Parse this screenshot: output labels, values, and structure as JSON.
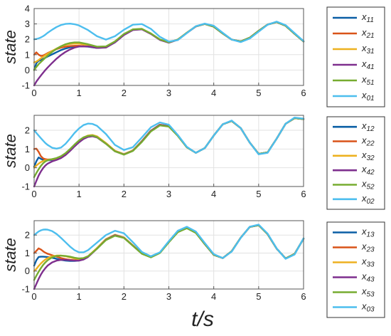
{
  "figure": {
    "xlabel": "t/s"
  },
  "chart_data": [
    {
      "type": "line",
      "xlabel": "",
      "ylabel": "state",
      "xlim": [
        0,
        6
      ],
      "ylim": [
        -1,
        4
      ],
      "xticks": [
        0,
        1,
        2,
        3,
        4,
        5,
        6
      ],
      "yticks": [
        -1,
        0,
        1,
        2,
        3,
        4
      ],
      "grid": true,
      "legend_position": "right",
      "x": [
        0,
        0.05,
        0.1,
        0.15,
        0.2,
        0.25,
        0.3,
        0.4,
        0.5,
        0.6,
        0.7,
        0.8,
        0.9,
        1,
        1.2,
        1.4,
        1.6,
        1.8,
        2,
        2.2,
        2.4,
        2.6,
        2.8,
        3,
        3.2,
        3.4,
        3.6,
        3.8,
        4,
        4.2,
        4.4,
        4.6,
        4.8,
        5,
        5.2,
        5.4,
        5.6,
        5.8,
        6
      ],
      "series": [
        {
          "name": "11",
          "color": "#0b5fa5",
          "values": [
            0,
            0.45,
            0.6,
            0.65,
            0.72,
            0.8,
            0.88,
            1.02,
            1.16,
            1.3,
            1.4,
            1.48,
            1.53,
            1.55,
            1.52,
            1.44,
            1.48,
            1.8,
            2.3,
            2.62,
            2.66,
            2.36,
            1.98,
            1.8,
            1.98,
            2.42,
            2.84,
            3.0,
            2.82,
            2.38,
            1.98,
            1.86,
            2.1,
            2.55,
            2.96,
            3.12,
            2.88,
            2.36,
            1.86
          ]
        },
        {
          "name": "21",
          "color": "#d95319",
          "values": [
            1.0,
            1.15,
            1.0,
            0.92,
            0.94,
            1.02,
            1.1,
            1.24,
            1.36,
            1.46,
            1.52,
            1.56,
            1.58,
            1.58,
            1.54,
            1.46,
            1.5,
            1.82,
            2.3,
            2.62,
            2.66,
            2.36,
            1.98,
            1.8,
            1.98,
            2.42,
            2.84,
            3.0,
            2.82,
            2.38,
            1.98,
            1.86,
            2.1,
            2.55,
            2.96,
            3.12,
            2.88,
            2.36,
            1.86
          ]
        },
        {
          "name": "31",
          "color": "#edb120",
          "values": [
            0.5,
            0.55,
            0.65,
            0.76,
            0.86,
            0.96,
            1.06,
            1.24,
            1.4,
            1.54,
            1.64,
            1.7,
            1.73,
            1.72,
            1.62,
            1.48,
            1.5,
            1.82,
            2.32,
            2.63,
            2.67,
            2.37,
            1.98,
            1.8,
            1.98,
            2.42,
            2.84,
            3.0,
            2.82,
            2.38,
            1.98,
            1.86,
            2.1,
            2.55,
            2.96,
            3.12,
            2.88,
            2.36,
            1.86
          ]
        },
        {
          "name": "41",
          "color": "#7e2f8e",
          "values": [
            -1.0,
            -0.75,
            -0.55,
            -0.36,
            -0.18,
            0.0,
            0.16,
            0.46,
            0.74,
            0.98,
            1.18,
            1.34,
            1.46,
            1.53,
            1.54,
            1.44,
            1.46,
            1.8,
            2.28,
            2.6,
            2.65,
            2.35,
            1.96,
            1.78,
            1.97,
            2.41,
            2.83,
            3.0,
            2.82,
            2.38,
            1.98,
            1.86,
            2.1,
            2.55,
            2.96,
            3.12,
            2.88,
            2.36,
            1.86
          ]
        },
        {
          "name": "51",
          "color": "#77ac30",
          "values": [
            0,
            0.2,
            0.38,
            0.52,
            0.66,
            0.8,
            0.94,
            1.18,
            1.38,
            1.55,
            1.68,
            1.76,
            1.8,
            1.8,
            1.68,
            1.52,
            1.54,
            1.86,
            2.35,
            2.65,
            2.68,
            2.38,
            1.99,
            1.8,
            1.98,
            2.42,
            2.84,
            3.0,
            2.82,
            2.38,
            1.98,
            1.86,
            2.1,
            2.55,
            2.96,
            3.12,
            2.88,
            2.36,
            1.86
          ]
        },
        {
          "name": "01",
          "color": "#4dbeee",
          "values": [
            2.0,
            2.02,
            2.06,
            2.12,
            2.2,
            2.3,
            2.42,
            2.62,
            2.8,
            2.93,
            3.0,
            3.02,
            2.98,
            2.9,
            2.6,
            2.2,
            1.98,
            2.2,
            2.62,
            2.95,
            2.99,
            2.68,
            2.16,
            1.85,
            1.95,
            2.4,
            2.85,
            3.02,
            2.88,
            2.42,
            1.98,
            1.82,
            2.05,
            2.5,
            2.95,
            3.15,
            2.92,
            2.4,
            1.88
          ]
        }
      ]
    },
    {
      "type": "line",
      "xlabel": "",
      "ylabel": "state",
      "xlim": [
        0,
        6
      ],
      "ylim": [
        -1,
        2.8
      ],
      "xticks": [
        0,
        1,
        2,
        3,
        4,
        5,
        6
      ],
      "yticks": [
        -1,
        0,
        1,
        2
      ],
      "grid": true,
      "legend_position": "right",
      "x": [
        0,
        0.05,
        0.1,
        0.15,
        0.2,
        0.25,
        0.3,
        0.4,
        0.5,
        0.6,
        0.7,
        0.8,
        0.9,
        1,
        1.1,
        1.2,
        1.3,
        1.4,
        1.6,
        1.8,
        2,
        2.2,
        2.4,
        2.6,
        2.8,
        3,
        3.2,
        3.4,
        3.6,
        3.8,
        4,
        4.2,
        4.4,
        4.6,
        4.8,
        5,
        5.2,
        5.4,
        5.6,
        5.8,
        6
      ],
      "series": [
        {
          "name": "12",
          "color": "#0b5fa5",
          "values": [
            0.05,
            0.35,
            0.55,
            0.48,
            0.42,
            0.4,
            0.4,
            0.42,
            0.46,
            0.55,
            0.7,
            0.92,
            1.16,
            1.38,
            1.56,
            1.67,
            1.7,
            1.64,
            1.3,
            0.9,
            0.72,
            0.92,
            1.42,
            1.98,
            2.3,
            2.22,
            1.72,
            1.1,
            0.8,
            1.05,
            1.72,
            2.32,
            2.5,
            2.12,
            1.35,
            0.74,
            0.82,
            1.55,
            2.35,
            2.65,
            2.6
          ]
        },
        {
          "name": "22",
          "color": "#d95319",
          "values": [
            1.0,
            1.02,
            0.85,
            0.62,
            0.5,
            0.46,
            0.44,
            0.45,
            0.48,
            0.57,
            0.72,
            0.94,
            1.18,
            1.4,
            1.58,
            1.68,
            1.7,
            1.64,
            1.3,
            0.9,
            0.72,
            0.92,
            1.42,
            1.98,
            2.3,
            2.22,
            1.72,
            1.1,
            0.8,
            1.05,
            1.72,
            2.32,
            2.5,
            2.12,
            1.35,
            0.74,
            0.82,
            1.55,
            2.35,
            2.65,
            2.6
          ]
        },
        {
          "name": "32",
          "color": "#edb120",
          "values": [
            0.0,
            0.12,
            0.22,
            0.3,
            0.36,
            0.4,
            0.42,
            0.45,
            0.5,
            0.6,
            0.76,
            0.98,
            1.22,
            1.44,
            1.62,
            1.72,
            1.75,
            1.68,
            1.32,
            0.91,
            0.73,
            0.93,
            1.43,
            1.98,
            2.3,
            2.22,
            1.72,
            1.1,
            0.8,
            1.05,
            1.72,
            2.32,
            2.5,
            2.12,
            1.35,
            0.74,
            0.82,
            1.55,
            2.35,
            2.65,
            2.6
          ]
        },
        {
          "name": "42",
          "color": "#7e2f8e",
          "values": [
            -1.0,
            -0.7,
            -0.42,
            -0.2,
            -0.02,
            0.12,
            0.22,
            0.34,
            0.42,
            0.52,
            0.68,
            0.9,
            1.14,
            1.36,
            1.54,
            1.65,
            1.68,
            1.62,
            1.28,
            0.88,
            0.71,
            0.91,
            1.41,
            1.97,
            2.29,
            2.22,
            1.72,
            1.1,
            0.8,
            1.05,
            1.72,
            2.32,
            2.5,
            2.12,
            1.35,
            0.74,
            0.82,
            1.55,
            2.35,
            2.65,
            2.6
          ]
        },
        {
          "name": "52",
          "color": "#77ac30",
          "values": [
            -0.5,
            -0.28,
            -0.08,
            0.1,
            0.24,
            0.34,
            0.4,
            0.46,
            0.52,
            0.62,
            0.78,
            1.0,
            1.24,
            1.46,
            1.62,
            1.7,
            1.72,
            1.64,
            1.28,
            0.88,
            0.7,
            0.9,
            1.38,
            1.94,
            2.26,
            2.2,
            1.7,
            1.09,
            0.8,
            1.05,
            1.72,
            2.32,
            2.5,
            2.12,
            1.35,
            0.74,
            0.82,
            1.55,
            2.35,
            2.65,
            2.6
          ]
        },
        {
          "name": "02",
          "color": "#4dbeee",
          "values": [
            2.0,
            1.86,
            1.72,
            1.58,
            1.45,
            1.32,
            1.22,
            1.07,
            1.02,
            1.08,
            1.28,
            1.56,
            1.86,
            2.1,
            2.28,
            2.36,
            2.34,
            2.24,
            1.8,
            1.22,
            0.95,
            1.1,
            1.62,
            2.16,
            2.42,
            2.3,
            1.75,
            1.12,
            0.8,
            1.05,
            1.72,
            2.32,
            2.52,
            2.12,
            1.35,
            0.72,
            0.8,
            1.55,
            2.35,
            2.68,
            2.62
          ]
        }
      ]
    },
    {
      "type": "line",
      "xlabel": "",
      "ylabel": "state",
      "xlim": [
        0,
        6
      ],
      "ylim": [
        -1,
        2.8
      ],
      "xticks": [
        0,
        1,
        2,
        3,
        4,
        5,
        6
      ],
      "yticks": [
        -1,
        0,
        1,
        2
      ],
      "grid": true,
      "legend_position": "right",
      "x": [
        0,
        0.05,
        0.1,
        0.15,
        0.2,
        0.25,
        0.3,
        0.4,
        0.5,
        0.6,
        0.7,
        0.8,
        0.9,
        1,
        1.1,
        1.2,
        1.4,
        1.6,
        1.8,
        2,
        2.2,
        2.4,
        2.6,
        2.8,
        3,
        3.2,
        3.4,
        3.6,
        3.8,
        4,
        4.2,
        4.4,
        4.6,
        4.8,
        5,
        5.2,
        5.4,
        5.6,
        5.8,
        6
      ],
      "series": [
        {
          "name": "13",
          "color": "#0b5fa5",
          "values": [
            0.3,
            0.6,
            0.78,
            0.8,
            0.8,
            0.79,
            0.78,
            0.74,
            0.68,
            0.62,
            0.58,
            0.56,
            0.56,
            0.58,
            0.66,
            0.8,
            1.26,
            1.76,
            2.0,
            1.86,
            1.42,
            0.98,
            0.78,
            1.02,
            1.62,
            2.18,
            2.4,
            2.14,
            1.5,
            0.9,
            0.72,
            1.1,
            1.85,
            2.45,
            2.55,
            2.05,
            1.25,
            0.7,
            0.95,
            1.8
          ]
        },
        {
          "name": "23",
          "color": "#d95319",
          "values": [
            1.0,
            1.12,
            1.26,
            1.2,
            1.1,
            1.02,
            0.96,
            0.88,
            0.8,
            0.72,
            0.66,
            0.62,
            0.6,
            0.6,
            0.67,
            0.8,
            1.26,
            1.76,
            2.0,
            1.86,
            1.42,
            0.98,
            0.78,
            1.02,
            1.62,
            2.18,
            2.4,
            2.14,
            1.5,
            0.9,
            0.72,
            1.1,
            1.85,
            2.45,
            2.55,
            2.05,
            1.25,
            0.7,
            0.95,
            1.8
          ]
        },
        {
          "name": "33",
          "color": "#edb120",
          "values": [
            0.0,
            0.12,
            0.28,
            0.42,
            0.54,
            0.64,
            0.72,
            0.82,
            0.86,
            0.86,
            0.82,
            0.76,
            0.7,
            0.66,
            0.7,
            0.82,
            1.28,
            1.78,
            2.02,
            1.87,
            1.43,
            0.98,
            0.78,
            1.02,
            1.62,
            2.18,
            2.4,
            2.14,
            1.5,
            0.9,
            0.72,
            1.1,
            1.85,
            2.45,
            2.55,
            2.05,
            1.25,
            0.7,
            0.95,
            1.8
          ]
        },
        {
          "name": "43",
          "color": "#7e2f8e",
          "values": [
            -1.0,
            -0.72,
            -0.44,
            -0.2,
            0.0,
            0.16,
            0.3,
            0.48,
            0.58,
            0.62,
            0.62,
            0.6,
            0.58,
            0.58,
            0.64,
            0.78,
            1.24,
            1.74,
            1.99,
            1.85,
            1.41,
            0.97,
            0.78,
            1.02,
            1.62,
            2.18,
            2.4,
            2.14,
            1.5,
            0.9,
            0.72,
            1.1,
            1.85,
            2.45,
            2.55,
            2.05,
            1.25,
            0.7,
            0.95,
            1.8
          ]
        },
        {
          "name": "53",
          "color": "#77ac30",
          "values": [
            -0.5,
            -0.26,
            -0.04,
            0.16,
            0.34,
            0.48,
            0.6,
            0.76,
            0.84,
            0.86,
            0.84,
            0.8,
            0.74,
            0.7,
            0.72,
            0.82,
            1.24,
            1.72,
            1.96,
            1.84,
            1.4,
            0.96,
            0.76,
            1.0,
            1.6,
            2.16,
            2.38,
            2.12,
            1.5,
            0.9,
            0.72,
            1.1,
            1.85,
            2.45,
            2.55,
            2.05,
            1.25,
            0.7,
            0.95,
            1.8
          ]
        },
        {
          "name": "03",
          "color": "#4dbeee",
          "values": [
            2.0,
            2.1,
            2.2,
            2.26,
            2.3,
            2.31,
            2.3,
            2.22,
            2.06,
            1.84,
            1.6,
            1.36,
            1.16,
            1.04,
            1.04,
            1.16,
            1.58,
            2.0,
            2.24,
            2.1,
            1.6,
            1.06,
            0.82,
            1.04,
            1.66,
            2.24,
            2.46,
            2.2,
            1.56,
            0.94,
            0.72,
            1.08,
            1.84,
            2.46,
            2.58,
            2.08,
            1.26,
            0.68,
            0.92,
            1.82
          ]
        }
      ]
    }
  ]
}
